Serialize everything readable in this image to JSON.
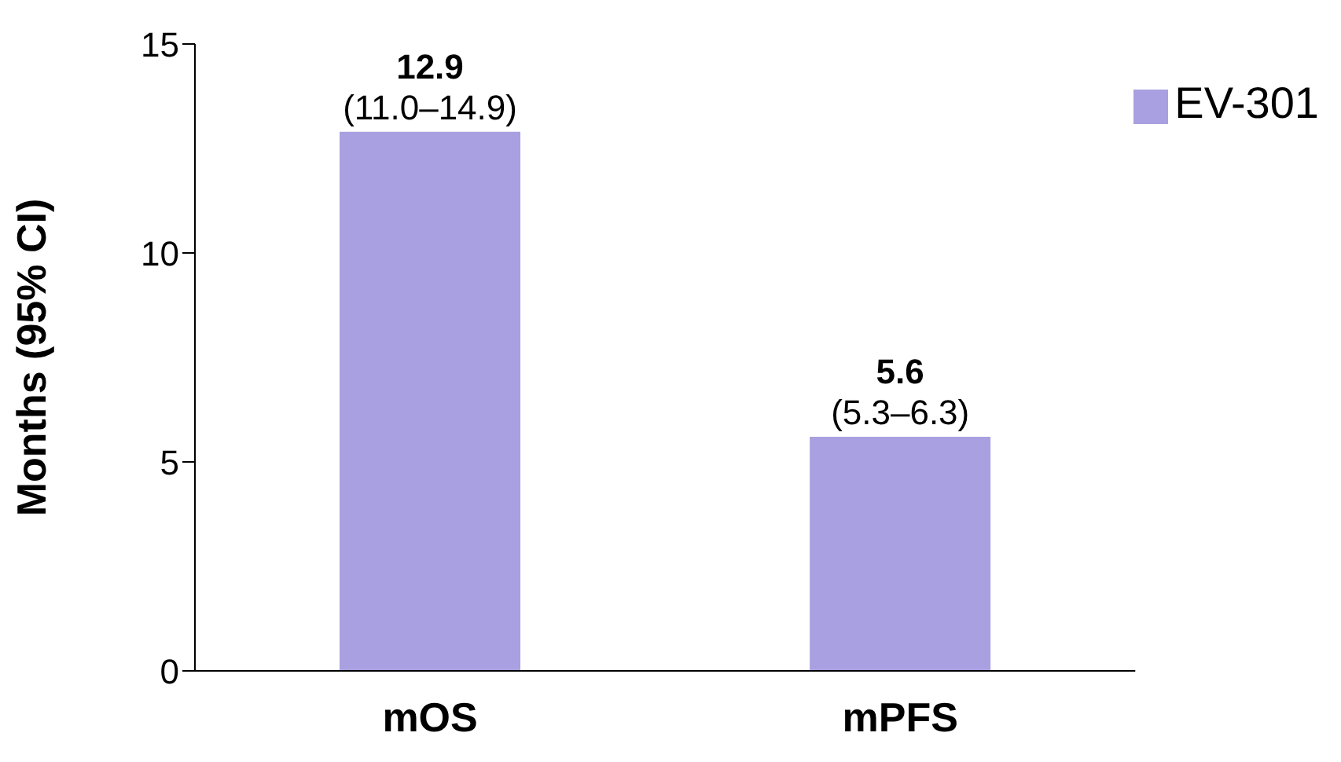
{
  "chart_data": {
    "type": "bar",
    "ylabel": "Months (95% CI)",
    "categories": [
      "mOS",
      "mPFS"
    ],
    "series": [
      {
        "name": "EV-301",
        "color": "#a8a0e0",
        "values": [
          12.9,
          5.6
        ]
      }
    ],
    "ylim": [
      0,
      15
    ],
    "yticks": [
      0,
      5,
      10,
      15
    ],
    "grid": false,
    "legend": "top right",
    "data_labels": true,
    "annotations": [
      {
        "text": "(11.0–14.9)",
        "x": "mOS",
        "y": 12.9
      },
      {
        "text": "(5.3–6.3)",
        "x": "mPFS",
        "y": 5.6
      }
    ]
  }
}
